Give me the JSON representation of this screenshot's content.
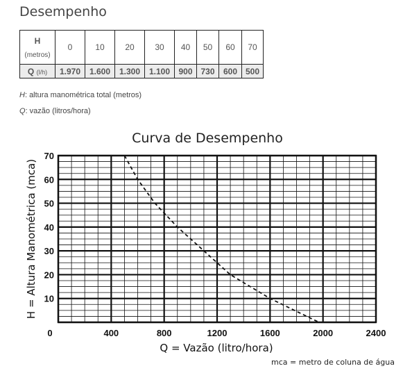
{
  "section_title": "Desempenho",
  "table": {
    "h_label": "H",
    "h_unit": "(metros)",
    "q_label": "Q",
    "q_unit": "(l/h)",
    "h_values": [
      "0",
      "10",
      "20",
      "30",
      "40",
      "50",
      "60",
      "70"
    ],
    "q_values": [
      "1.970",
      "1.600",
      "1.300",
      "1.100",
      "900",
      "730",
      "600",
      "500"
    ]
  },
  "legend": {
    "h_symbol": "H",
    "h_text": ": altura manométrica total (metros)",
    "q_symbol": "Q",
    "q_text": ": vazão (litros/hora)"
  },
  "chart_data": {
    "type": "line",
    "title": "Curva de Desempenho",
    "xlabel": "Q = Vazão (litro/hora)",
    "ylabel": "H = Altura Manométrica (mca)",
    "note": "mca = metro de coluna de água",
    "xlim": [
      0,
      2400
    ],
    "ylim": [
      0,
      70
    ],
    "x_ticks": [
      "0",
      "400",
      "800",
      "1200",
      "1600",
      "2000",
      "2400"
    ],
    "y_ticks": [
      "10",
      "20",
      "30",
      "40",
      "50",
      "60",
      "70"
    ],
    "grid": true,
    "line_style": "dashed",
    "series": [
      {
        "x": [
          500,
          600,
          730,
          900,
          1100,
          1300,
          1600,
          1970
        ],
        "y": [
          70,
          60,
          50,
          40,
          30,
          20,
          10,
          0
        ]
      }
    ]
  }
}
